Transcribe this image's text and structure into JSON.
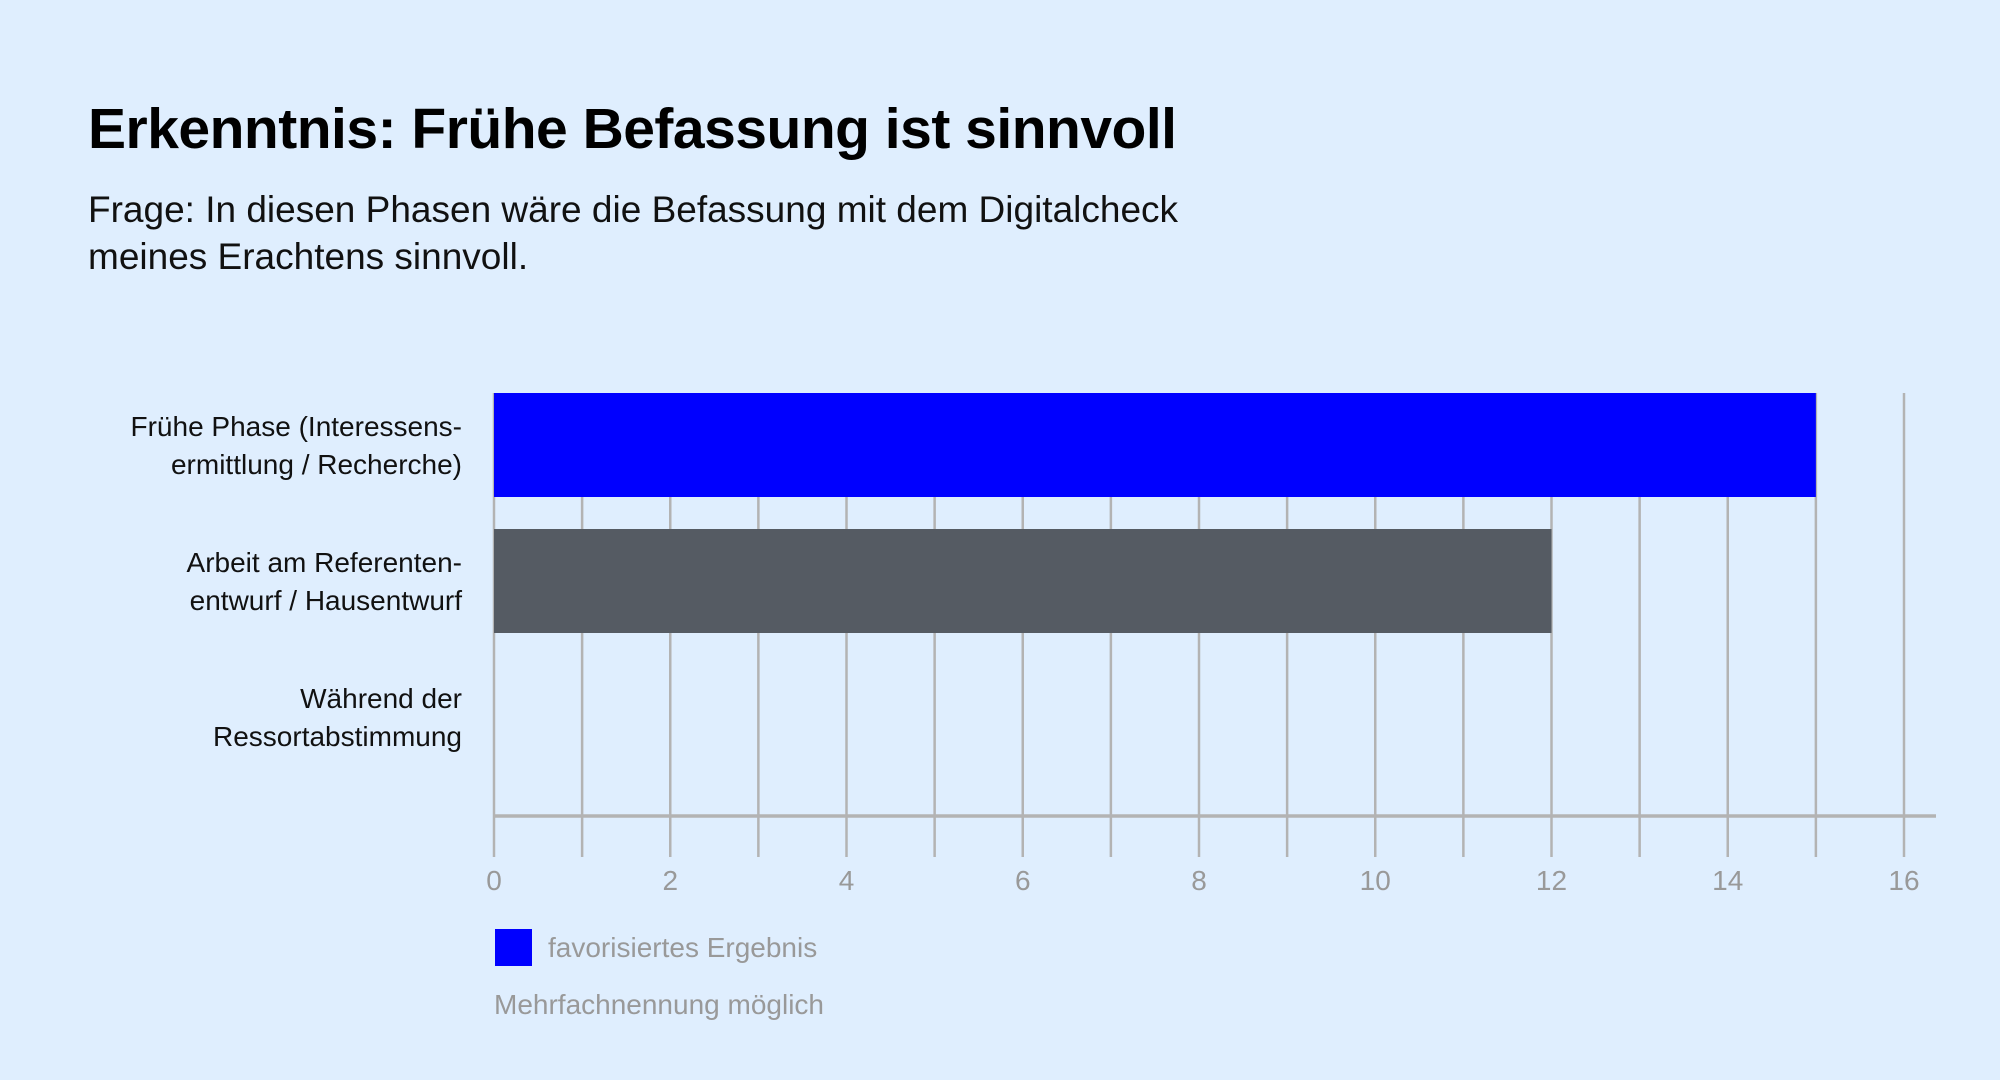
{
  "title": "Erkenntnis: Frühe Befassung ist sinnvoll",
  "subtitle": "Frage: In diesen Phasen wäre die Befassung mit dem Digitalcheck meines Erachtens sinnvoll.",
  "colors": {
    "background": "#dfeefe",
    "highlight": "#0000ff",
    "default_bar": "#555b63",
    "grid": "#b3b3b3"
  },
  "chart_data": {
    "type": "bar",
    "orientation": "horizontal",
    "categories": [
      [
        "Frühe Phase (Interessens-",
        "ermittlung / Recherche)"
      ],
      [
        "Arbeit am Referenten-",
        "entwurf / Hausentwurf"
      ],
      [
        "Während der",
        "Ressortabstimmung"
      ]
    ],
    "values": [
      15,
      12,
      0
    ],
    "highlighted": [
      true,
      false,
      false
    ],
    "xlim": [
      0,
      16
    ],
    "xticks": [
      "0",
      "2",
      "4",
      "6",
      "8",
      "10",
      "12",
      "14",
      "16"
    ],
    "grid": true,
    "legend": {
      "label": "favorisiertes Ergebnis",
      "placement": "bottom-left"
    },
    "note": "Mehrfachnennung möglich"
  }
}
